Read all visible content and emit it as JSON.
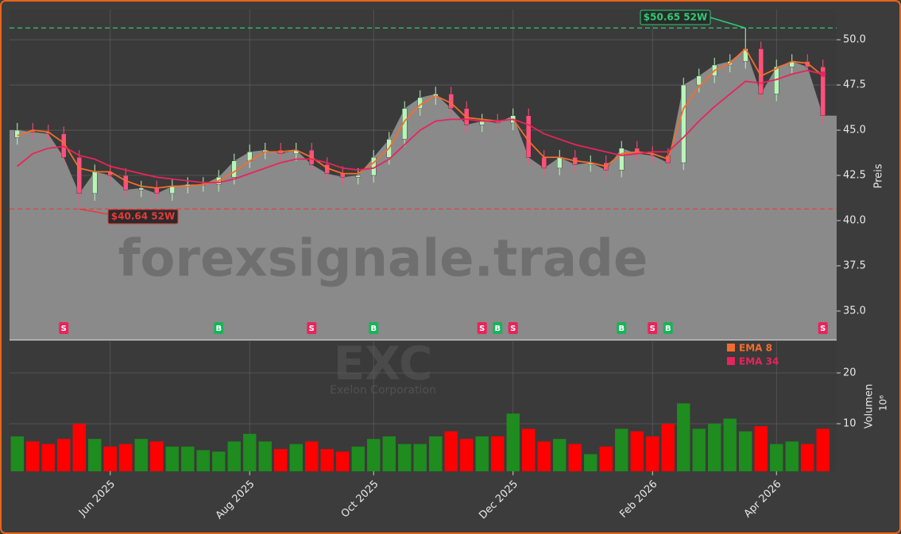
{
  "chart_data": {
    "type": "candlestick",
    "watermark": "forexsignale.trade",
    "symbol": "EXC",
    "company": "Exelon Corporation",
    "ylabel": "Preis",
    "categories": [
      null,
      null,
      null,
      null,
      null,
      null,
      "Jun 2025",
      null,
      null,
      null,
      null,
      null,
      null,
      null,
      null,
      "Aug 2025",
      null,
      null,
      null,
      null,
      null,
      null,
      null,
      "Oct 2025",
      null,
      null,
      null,
      null,
      null,
      null,
      null,
      null,
      "Dec 2025",
      null,
      null,
      null,
      null,
      null,
      null,
      null,
      null,
      "Feb 2026",
      null,
      null,
      null,
      null,
      null,
      null,
      null,
      "Apr 2026",
      null,
      null,
      null
    ],
    "open": [
      44.6,
      45.0,
      44.9,
      44.8,
      43.5,
      41.5,
      42.7,
      42.5,
      41.7,
      41.8,
      41.5,
      41.9,
      42.0,
      42.0,
      42.4,
      43.3,
      43.8,
      43.9,
      43.7,
      43.9,
      43.1,
      42.6,
      42.4,
      42.5,
      43.5,
      44.5,
      46.2,
      46.8,
      47.0,
      46.2,
      45.3,
      45.5,
      45.4,
      45.8,
      43.5,
      42.9,
      43.5,
      43.1,
      43.2,
      42.8,
      44.0,
      43.7,
      43.6,
      43.2,
      47.5,
      48.0,
      48.6,
      48.8,
      49.5,
      47.0,
      48.5,
      48.8,
      48.5
    ],
    "high": [
      45.4,
      45.4,
      45.3,
      45.2,
      43.9,
      43.1,
      43.1,
      42.9,
      42.2,
      42.2,
      42.3,
      42.4,
      42.4,
      42.8,
      43.7,
      44.2,
      44.3,
      44.3,
      44.3,
      44.3,
      43.5,
      43.0,
      42.9,
      43.9,
      44.9,
      46.6,
      47.2,
      47.4,
      47.4,
      46.6,
      45.9,
      45.9,
      46.2,
      46.2,
      43.9,
      43.9,
      43.9,
      43.6,
      43.6,
      44.4,
      44.4,
      44.1,
      44.0,
      47.9,
      48.4,
      49.0,
      49.2,
      50.65,
      49.9,
      48.9,
      49.2,
      49.2,
      48.9
    ],
    "low": [
      44.2,
      44.5,
      44.4,
      43.1,
      40.64,
      41.1,
      42.1,
      41.3,
      41.3,
      41.1,
      41.1,
      41.5,
      41.6,
      41.6,
      42.0,
      42.9,
      43.4,
      43.3,
      43.3,
      42.7,
      42.2,
      42.0,
      42.0,
      42.1,
      43.1,
      44.1,
      45.8,
      46.4,
      45.8,
      44.9,
      44.9,
      45.0,
      45.0,
      43.1,
      42.5,
      42.5,
      42.7,
      42.7,
      42.4,
      42.4,
      43.3,
      43.2,
      42.8,
      42.8,
      47.1,
      47.6,
      48.2,
      48.4,
      46.6,
      46.6,
      48.1,
      48.1,
      45.4
    ],
    "close": [
      45.0,
      44.9,
      44.8,
      43.5,
      41.5,
      42.7,
      42.5,
      41.7,
      41.8,
      41.5,
      41.9,
      42.0,
      42.0,
      42.4,
      43.3,
      43.8,
      43.9,
      43.7,
      43.9,
      43.1,
      42.6,
      42.4,
      42.5,
      43.5,
      44.5,
      46.2,
      46.8,
      47.0,
      46.2,
      45.3,
      45.5,
      45.4,
      45.8,
      43.5,
      42.9,
      43.5,
      43.1,
      43.2,
      42.8,
      44.0,
      43.7,
      43.6,
      43.2,
      47.5,
      48.0,
      48.6,
      48.8,
      49.5,
      47.0,
      48.5,
      48.8,
      48.5,
      45.8
    ],
    "up_color": "#b8f5b8",
    "down_color": "#ff4f7a",
    "series": [
      {
        "name": "EMA 8",
        "color": "#f26d2d",
        "values": [
          44.7,
          45.0,
          44.9,
          44.3,
          42.9,
          42.7,
          42.7,
          42.2,
          41.9,
          41.8,
          41.9,
          41.9,
          42.0,
          42.2,
          42.7,
          43.3,
          43.8,
          43.8,
          43.9,
          43.5,
          42.9,
          42.6,
          42.6,
          43.2,
          44.0,
          45.5,
          46.4,
          46.9,
          46.5,
          45.7,
          45.6,
          45.5,
          45.6,
          44.4,
          43.5,
          43.5,
          43.3,
          43.2,
          43.0,
          43.7,
          43.8,
          43.7,
          43.4,
          46.2,
          47.4,
          48.3,
          48.7,
          49.5,
          48.0,
          48.4,
          48.8,
          48.7,
          48.0
        ]
      },
      {
        "name": "EMA 34",
        "color": "#e8245c",
        "values": [
          43.0,
          43.7,
          44.0,
          44.1,
          43.6,
          43.4,
          43.0,
          42.8,
          42.6,
          42.4,
          42.3,
          42.2,
          42.1,
          42.1,
          42.3,
          42.6,
          42.9,
          43.2,
          43.4,
          43.4,
          43.2,
          42.9,
          42.8,
          42.9,
          43.4,
          44.2,
          45.0,
          45.5,
          45.6,
          45.6,
          45.5,
          45.5,
          45.6,
          45.3,
          44.8,
          44.5,
          44.2,
          44.0,
          43.8,
          43.6,
          43.7,
          43.8,
          43.8,
          44.6,
          45.5,
          46.3,
          47.0,
          47.7,
          47.6,
          47.8,
          48.1,
          48.3,
          48.1
        ]
      }
    ],
    "signals": [
      null,
      null,
      null,
      "S",
      null,
      null,
      null,
      null,
      null,
      null,
      null,
      null,
      null,
      "B",
      null,
      null,
      null,
      null,
      null,
      "S",
      null,
      null,
      null,
      "B",
      null,
      null,
      null,
      null,
      null,
      null,
      "S",
      "B",
      "S",
      null,
      null,
      null,
      null,
      null,
      null,
      "B",
      null,
      "S",
      "B",
      null,
      null,
      null,
      null,
      null,
      null,
      null,
      null,
      null,
      "S"
    ],
    "signal_colors": {
      "S": "#e8245c",
      "B": "#19b35a"
    },
    "high_52w": {
      "value": 50.65,
      "label": "$50.65 52W",
      "color": "#2ecc71"
    },
    "low_52w": {
      "value": 40.64,
      "label": "$40.64 52W",
      "color": "#e83a3a"
    },
    "ylim": [
      33.42,
      51.67
    ],
    "yticks": [
      {
        "value": 35,
        "label": "35.0"
      },
      {
        "value": 37.5,
        "label": "37.5"
      },
      {
        "value": 40,
        "label": "40.0"
      },
      {
        "value": 42.5,
        "label": "42.5"
      },
      {
        "value": 45,
        "label": "45.0"
      },
      {
        "value": 47.5,
        "label": "47.5"
      },
      {
        "value": 50,
        "label": "50.0"
      }
    ],
    "grid": true,
    "volume": {
      "ylabel": "Volumen",
      "unit": "10⁶",
      "values": [
        7.5,
        6.5,
        6,
        7,
        10,
        7,
        5.5,
        6,
        7,
        6.5,
        5.5,
        5.5,
        4.8,
        4.5,
        6.5,
        8,
        6.5,
        5,
        6,
        6.5,
        5,
        4.5,
        5.5,
        7,
        7.5,
        6,
        6,
        7.5,
        8.5,
        7,
        7.5,
        7.5,
        12,
        9,
        6.5,
        7,
        6,
        4,
        5.5,
        9,
        8.5,
        7.5,
        10,
        14,
        9,
        10,
        11,
        8.5,
        9.5,
        6,
        6.5,
        6,
        9
      ],
      "up_color": "#1e8c1e",
      "down_color": "#ff0000",
      "ylim": [
        0.625,
        26.25
      ],
      "yticks": [
        10,
        20
      ]
    }
  }
}
